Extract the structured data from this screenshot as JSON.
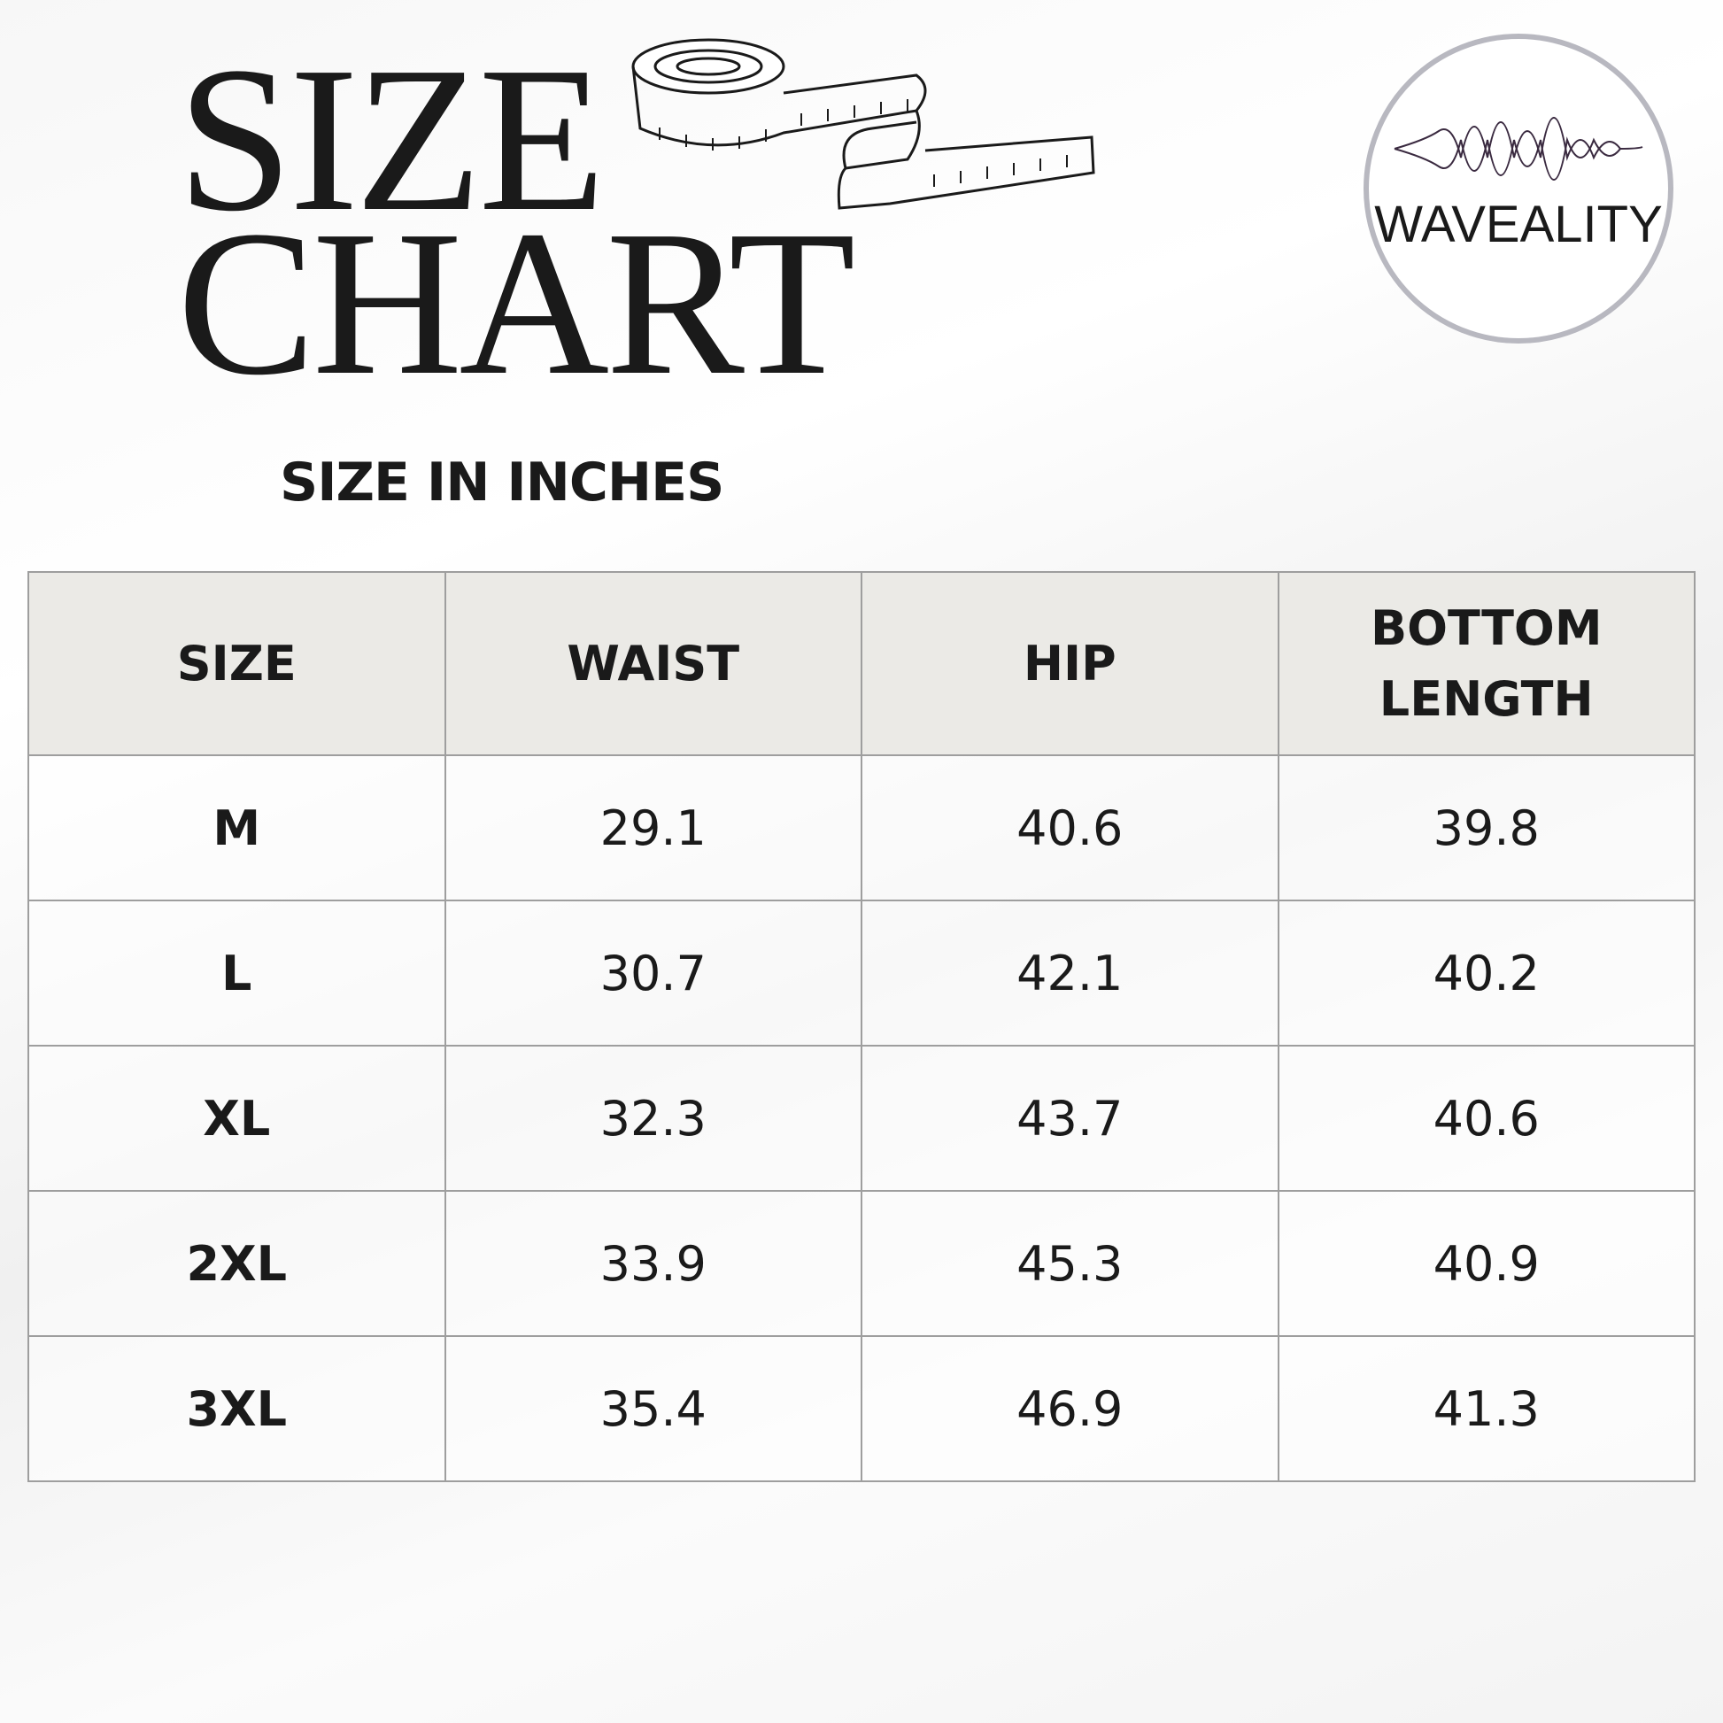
{
  "header": {
    "title_lines": [
      "SIZE",
      "CHART"
    ],
    "logo": "WAVEALITY"
  },
  "subtitle": "SIZE IN INCHES",
  "table": {
    "columns": [
      "SIZE",
      "WAIST",
      "HIP",
      "BOTTOM LENGTH"
    ],
    "rows": [
      [
        "M",
        "29.1",
        "40.6",
        "39.8"
      ],
      [
        "L",
        "30.7",
        "42.1",
        "40.2"
      ],
      [
        "XL",
        "32.3",
        "43.7",
        "40.6"
      ],
      [
        "2XL",
        "33.9",
        "45.3",
        "40.9"
      ],
      [
        "3XL",
        "35.4",
        "46.9",
        "41.3"
      ]
    ]
  }
}
